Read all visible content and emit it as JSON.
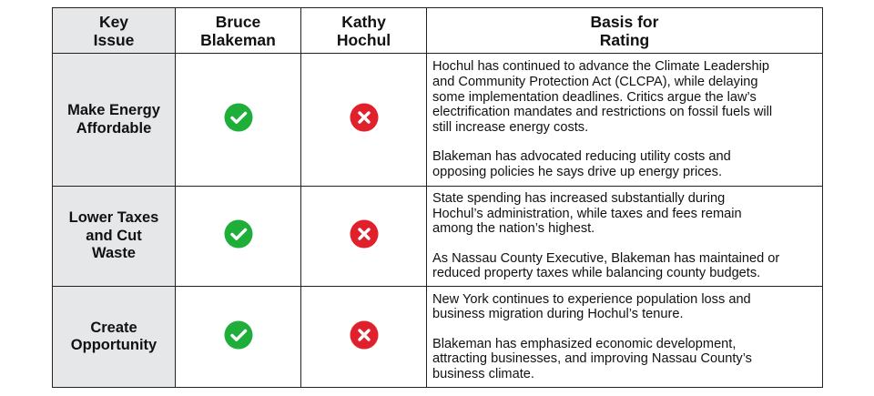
{
  "table": {
    "header": [
      [
        "Key",
        "Issue"
      ],
      [
        "Bruce",
        "Blakeman"
      ],
      [
        "Kathy",
        "Hochul"
      ],
      [
        "Basis for",
        "Rating"
      ]
    ],
    "rows": [
      {
        "issue": [
          "Make Energy",
          "Affordable"
        ],
        "basis": [
          [
            "Hochul has continued to advance the Climate Leadership",
            "and Community Protection Act (CLCPA), while delaying",
            "some implementation deadlines. Critics argue the law’s",
            "electrification mandates and restrictions on fossil fuels will",
            "still increase energy costs."
          ],
          [
            "Blakeman has advocated reducing utility costs and",
            "opposing policies he says drive up energy prices."
          ]
        ]
      },
      {
        "issue": [
          "Lower Taxes",
          "and Cut",
          "Waste"
        ],
        "basis": [
          [
            "State spending has increased substantially during",
            "Hochul’s administration, while taxes and fees remain",
            "among the nation’s highest."
          ],
          [
            "As Nassau County Executive, Blakeman has maintained or",
            "reduced property taxes while balancing county budgets."
          ]
        ]
      },
      {
        "issue": [
          "Create",
          "Opportunity"
        ],
        "basis": [
          [
            "New York continues to experience population loss and",
            "business migration during Hochul’s tenure."
          ],
          [
            "Blakeman has emphasized economic development,",
            "attracting businesses, and improving Nassau County’s",
            "business climate."
          ]
        ]
      }
    ]
  }
}
